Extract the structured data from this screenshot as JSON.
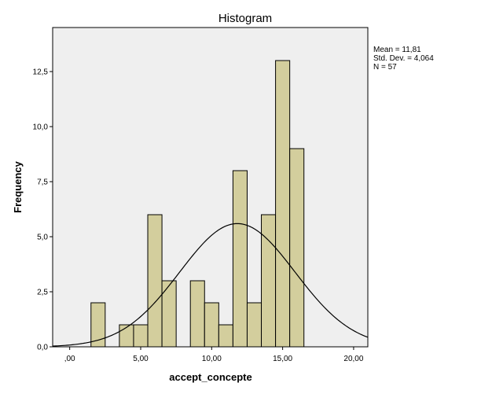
{
  "chart_data": {
    "type": "bar",
    "subtype": "histogram",
    "title": "Histogram",
    "xlabel": "accept_concepte",
    "ylabel": "Frequency",
    "xlim": [
      -1.2,
      21.0
    ],
    "ylim": [
      0,
      14.5
    ],
    "x_ticks": [
      {
        "value": 0,
        "label": ",00"
      },
      {
        "value": 5,
        "label": "5,00"
      },
      {
        "value": 10,
        "label": "10,00"
      },
      {
        "value": 15,
        "label": "15,00"
      },
      {
        "value": 20,
        "label": "20,00"
      }
    ],
    "y_ticks": [
      {
        "value": 0,
        "label": "0,0"
      },
      {
        "value": 2.5,
        "label": "2,5"
      },
      {
        "value": 5,
        "label": "5,0"
      },
      {
        "value": 7.5,
        "label": "7,5"
      },
      {
        "value": 10,
        "label": "10,0"
      },
      {
        "value": 12.5,
        "label": "12,5"
      }
    ],
    "bin_width": 1,
    "bins": [
      {
        "start": 1.5,
        "end": 2.5,
        "count": 2
      },
      {
        "start": 3.5,
        "end": 4.5,
        "count": 1
      },
      {
        "start": 4.5,
        "end": 5.5,
        "count": 1
      },
      {
        "start": 5.5,
        "end": 6.5,
        "count": 6
      },
      {
        "start": 6.5,
        "end": 7.5,
        "count": 3
      },
      {
        "start": 8.5,
        "end": 9.5,
        "count": 3
      },
      {
        "start": 9.5,
        "end": 10.5,
        "count": 2
      },
      {
        "start": 10.5,
        "end": 11.5,
        "count": 1
      },
      {
        "start": 11.5,
        "end": 12.5,
        "count": 8
      },
      {
        "start": 12.5,
        "end": 13.5,
        "count": 2
      },
      {
        "start": 13.5,
        "end": 14.5,
        "count": 6
      },
      {
        "start": 14.5,
        "end": 15.5,
        "count": 13
      },
      {
        "start": 15.5,
        "end": 16.5,
        "count": 9
      }
    ],
    "normal_curve": {
      "mean": 11.81,
      "sd": 4.064,
      "n": 57
    },
    "stats_lines": [
      "Mean = 11,81",
      "Std. Dev. = 4,064",
      "N = 57"
    ],
    "colors": {
      "bar_fill": "#d3ce9d",
      "bar_stroke": "#000000",
      "plot_background": "#efefef",
      "curve": "#000000"
    }
  }
}
